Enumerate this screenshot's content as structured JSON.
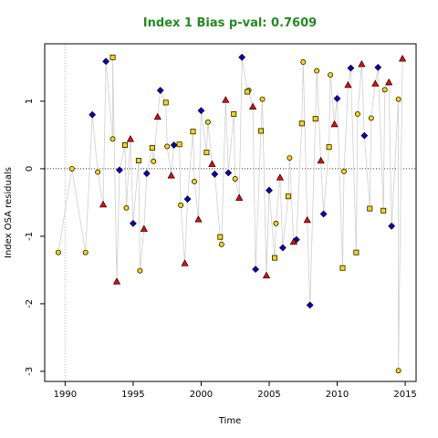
{
  "chart_data": {
    "type": "scatter",
    "title": "Index 1 Bias p-val: 0.7609",
    "title_color": "#228B22",
    "xlabel": "Time",
    "ylabel": "Index OSA residuals",
    "xlim": [
      1988.5,
      2015.8
    ],
    "ylim": [
      -3.15,
      1.85
    ],
    "x_ticks": [
      1990,
      1995,
      2000,
      2005,
      2010,
      2015
    ],
    "y_ticks": [
      -3,
      -2,
      -1,
      0,
      1
    ],
    "grid": false,
    "zero_line": true,
    "vertical_ref_line": 1990,
    "line_color": "#cfcfcf",
    "series": [
      {
        "marker": "circle",
        "color": "#FFD700",
        "points": [
          [
            1989.5,
            -1.24
          ],
          [
            1990.5,
            0.0
          ],
          [
            1991.5,
            -1.24
          ],
          [
            1992.4,
            -0.05
          ],
          [
            1993.5,
            0.44
          ],
          [
            1994.5,
            -0.58
          ],
          [
            1995.5,
            -1.51
          ],
          [
            1996.5,
            0.11
          ],
          [
            1997.5,
            0.33
          ],
          [
            1998.5,
            -0.54
          ],
          [
            1999.5,
            -0.19
          ],
          [
            2000.5,
            0.69
          ],
          [
            2001.5,
            -1.12
          ],
          [
            2002.5,
            -0.15
          ],
          [
            2003.5,
            1.16
          ],
          [
            2004.5,
            1.03
          ],
          [
            2005.5,
            -0.81
          ],
          [
            2006.5,
            0.16
          ],
          [
            2007.5,
            1.58
          ],
          [
            2008.5,
            1.45
          ],
          [
            2009.5,
            1.39
          ],
          [
            2010.5,
            -0.04
          ],
          [
            2011.5,
            0.81
          ],
          [
            2012.5,
            0.75
          ],
          [
            2013.5,
            1.17
          ],
          [
            2014.5,
            1.03
          ],
          [
            2014.5,
            -2.99
          ]
        ]
      },
      {
        "marker": "square",
        "color": "#FFD700",
        "points": [
          [
            1993.5,
            1.65
          ],
          [
            1994.4,
            0.35
          ],
          [
            1995.4,
            0.12
          ],
          [
            1996.4,
            0.31
          ],
          [
            1997.4,
            0.98
          ],
          [
            1998.4,
            0.36
          ],
          [
            1999.4,
            0.55
          ],
          [
            2000.4,
            0.24
          ],
          [
            2001.4,
            -1.01
          ],
          [
            2002.4,
            0.81
          ],
          [
            2003.4,
            1.14
          ],
          [
            2004.4,
            0.56
          ],
          [
            2005.4,
            -1.32
          ],
          [
            2006.4,
            -0.41
          ],
          [
            2007.4,
            0.67
          ],
          [
            2008.4,
            0.74
          ],
          [
            2009.4,
            0.32
          ],
          [
            2010.4,
            -1.47
          ],
          [
            2011.4,
            -1.24
          ],
          [
            2012.4,
            -0.59
          ],
          [
            2013.4,
            -0.62
          ]
        ]
      },
      {
        "marker": "diamond",
        "color": "#0000CD",
        "points": [
          [
            1992.0,
            0.8
          ],
          [
            1993.0,
            1.59
          ],
          [
            1994.0,
            -0.02
          ],
          [
            1995.0,
            -0.81
          ],
          [
            1996.0,
            -0.07
          ],
          [
            1997.0,
            1.16
          ],
          [
            1998.0,
            0.35
          ],
          [
            1999.0,
            -0.45
          ],
          [
            2000.0,
            0.86
          ],
          [
            2001.0,
            -0.08
          ],
          [
            2002.0,
            -0.06
          ],
          [
            2003.0,
            1.65
          ],
          [
            2004.0,
            -1.49
          ],
          [
            2005.0,
            -0.32
          ],
          [
            2006.0,
            -1.17
          ],
          [
            2007.0,
            -1.05
          ],
          [
            2008.0,
            -2.02
          ],
          [
            2009.0,
            -0.67
          ],
          [
            2010.0,
            1.04
          ],
          [
            2011.0,
            1.49
          ],
          [
            2012.0,
            0.49
          ],
          [
            2013.0,
            1.5
          ],
          [
            2014.0,
            -0.85
          ]
        ]
      },
      {
        "marker": "triangle",
        "color": "#FF0000",
        "points": [
          [
            1992.8,
            -0.53
          ],
          [
            1993.8,
            -1.67
          ],
          [
            1994.8,
            0.44
          ],
          [
            1995.8,
            -0.89
          ],
          [
            1996.8,
            0.77
          ],
          [
            1997.8,
            -0.1
          ],
          [
            1998.8,
            -1.4
          ],
          [
            1999.8,
            -0.75
          ],
          [
            2000.8,
            0.07
          ],
          [
            2001.8,
            1.02
          ],
          [
            2002.8,
            -0.43
          ],
          [
            2003.8,
            0.92
          ],
          [
            2004.8,
            -1.58
          ],
          [
            2005.8,
            -0.13
          ],
          [
            2006.8,
            -1.08
          ],
          [
            2007.8,
            -0.76
          ],
          [
            2008.8,
            0.12
          ],
          [
            2009.8,
            0.66
          ],
          [
            2010.8,
            1.24
          ],
          [
            2011.8,
            1.55
          ],
          [
            2012.8,
            1.26
          ],
          [
            2013.8,
            1.28
          ],
          [
            2014.8,
            1.63
          ]
        ]
      }
    ]
  }
}
